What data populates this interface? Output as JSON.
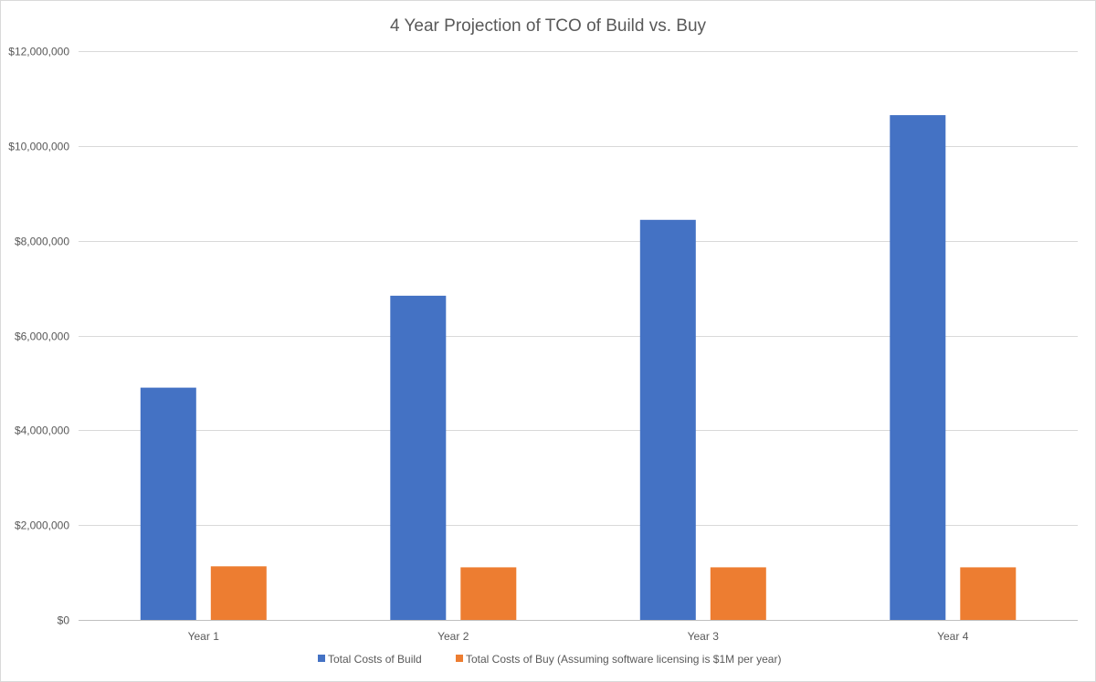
{
  "chart_data": {
    "type": "bar",
    "title": "4 Year Projection of TCO of Build vs. Buy",
    "xlabel": "",
    "ylabel": "",
    "categories": [
      "Year 1",
      "Year 2",
      "Year 3",
      "Year 4"
    ],
    "ylim": [
      0,
      12000000
    ],
    "yticks": [
      0,
      2000000,
      4000000,
      6000000,
      8000000,
      10000000,
      12000000
    ],
    "ytick_labels": [
      "$0",
      "$2,000,000",
      "$4,000,000",
      "$6,000,000",
      "$8,000,000",
      "$10,000,000",
      "$12,000,000"
    ],
    "grid": true,
    "legend_position": "bottom",
    "series": [
      {
        "name": "Total Costs of Build",
        "color": "#4472c4",
        "values": [
          4900000,
          6840000,
          8440000,
          10650000
        ]
      },
      {
        "name": "Total Costs of Buy (Assuming software licensing is $1M per year)",
        "color": "#ed7d31",
        "values": [
          1130000,
          1110000,
          1110000,
          1110000
        ]
      }
    ]
  }
}
